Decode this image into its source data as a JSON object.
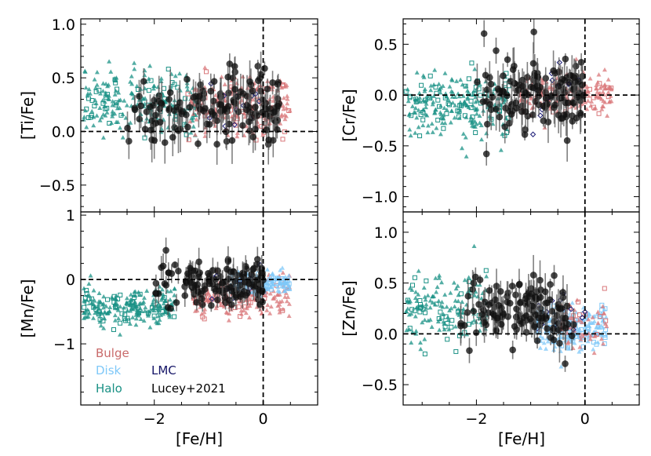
{
  "figure": {
    "xlabel": "[Fe/H]",
    "legend": {
      "placement": "lower-left of [Mn/Fe] panel",
      "entries": [
        {
          "label": "Bulge",
          "color": "#c96a6a"
        },
        {
          "label": "Disk",
          "color": "#7fc8f8"
        },
        {
          "label": "Halo",
          "color": "#1a9185"
        },
        {
          "label": "LMC",
          "color": "#141466"
        },
        {
          "label": "Lucey+2021",
          "color": "#000000"
        }
      ]
    },
    "colors": {
      "bulge": "#d9777a",
      "disk": "#7fc8f8",
      "halo": "#1a9185",
      "lmc": "#1e1e78",
      "lucey": "#111111"
    }
  },
  "chart_data": [
    {
      "type": "scatter",
      "panel": "top-left",
      "ylabel": "[Ti/Fe]",
      "xlim": [
        -3.35,
        1.0
      ],
      "ylim": [
        -0.75,
        1.05
      ],
      "xticks": [
        -2,
        0
      ],
      "xtick_labels": [
        "",
        ""
      ],
      "yticks": [
        1.0,
        0.5,
        0.0,
        -0.5
      ],
      "ytick_labels": [
        "1.0",
        "0.5",
        "0.0",
        "−0.5"
      ],
      "reference_lines": {
        "x": 0,
        "y": 0
      },
      "clouds": [
        {
          "series": "Halo",
          "xrange": [
            -3.3,
            -1.2
          ],
          "ycenter": 0.28,
          "yspread": 0.14,
          "count": 240
        },
        {
          "series": "Bulge",
          "xrange": [
            -1.4,
            0.5
          ],
          "ycenter": 0.22,
          "yspread": 0.14,
          "count": 220
        }
      ],
      "lucey": {
        "xrange": [
          -2.5,
          0.3
        ],
        "ycenter": 0.2,
        "yspread": 0.16,
        "count": 150
      }
    },
    {
      "type": "scatter",
      "panel": "top-right",
      "ylabel": "[Cr/Fe]",
      "xlim": [
        -3.35,
        1.0
      ],
      "ylim": [
        -1.15,
        0.75
      ],
      "xticks": [
        -2,
        0
      ],
      "xtick_labels": [
        "",
        ""
      ],
      "yticks": [
        0.5,
        0.0,
        -0.5,
        -1.0
      ],
      "ytick_labels": [
        "0.5",
        "0.0",
        "−0.5",
        "−1.0"
      ],
      "reference_lines": {
        "x": 0,
        "y": 0
      },
      "clouds": [
        {
          "series": "Halo",
          "xrange": [
            -3.3,
            -1.4
          ],
          "ycenter": -0.1,
          "yspread": 0.15,
          "count": 240
        },
        {
          "series": "Bulge",
          "xrange": [
            -1.2,
            0.5
          ],
          "ycenter": 0.0,
          "yspread": 0.1,
          "count": 200
        }
      ],
      "lucey": {
        "xrange": [
          -2.0,
          0.0
        ],
        "ycenter": 0.02,
        "yspread": 0.18,
        "count": 140
      }
    },
    {
      "type": "scatter",
      "panel": "bottom-left",
      "ylabel": "[Mn/Fe]",
      "xlim": [
        -3.35,
        1.0
      ],
      "ylim": [
        -1.95,
        1.05
      ],
      "xticks": [
        -2,
        0
      ],
      "xtick_labels": [
        "−2",
        "0"
      ],
      "yticks": [
        1,
        0,
        -1
      ],
      "ytick_labels": [
        "1",
        "0",
        "−1"
      ],
      "reference_lines": {
        "x": 0,
        "y": 0
      },
      "clouds": [
        {
          "series": "Halo",
          "xrange": [
            -3.3,
            -1.6
          ],
          "ycenter": -0.42,
          "yspread": 0.14,
          "count": 240
        },
        {
          "series": "Bulge",
          "xrange": [
            -1.3,
            0.5
          ],
          "ycenter": -0.3,
          "yspread": 0.16,
          "count": 200
        },
        {
          "series": "Disk",
          "xrange": [
            -0.6,
            0.5
          ],
          "ycenter": -0.05,
          "yspread": 0.08,
          "count": 180
        }
      ],
      "lucey": {
        "xrange": [
          -2.0,
          0.0
        ],
        "ycenter": -0.05,
        "yspread": 0.2,
        "count": 140
      }
    },
    {
      "type": "scatter",
      "panel": "bottom-right",
      "ylabel": "[Zn/Fe]",
      "xlim": [
        -3.35,
        1.0
      ],
      "ylim": [
        -0.7,
        1.2
      ],
      "xticks": [
        -2,
        0
      ],
      "xtick_labels": [
        "−2",
        "0"
      ],
      "yticks": [
        1.0,
        0.5,
        0.0,
        -0.5
      ],
      "ytick_labels": [
        "1.0",
        "0.5",
        "0.0",
        "−0.5"
      ],
      "reference_lines": {
        "x": 0,
        "y": 0
      },
      "clouds": [
        {
          "series": "Halo",
          "xrange": [
            -3.3,
            -1.8
          ],
          "ycenter": 0.25,
          "yspread": 0.16,
          "count": 160
        },
        {
          "series": "Disk",
          "xrange": [
            -0.9,
            0.4
          ],
          "ycenter": 0.05,
          "yspread": 0.11,
          "count": 220
        },
        {
          "series": "Bulge",
          "xrange": [
            -0.5,
            0.4
          ],
          "ycenter": 0.05,
          "yspread": 0.12,
          "count": 60
        }
      ],
      "lucey": {
        "xrange": [
          -2.3,
          -0.2
        ],
        "ycenter": 0.2,
        "yspread": 0.16,
        "count": 140
      }
    }
  ]
}
